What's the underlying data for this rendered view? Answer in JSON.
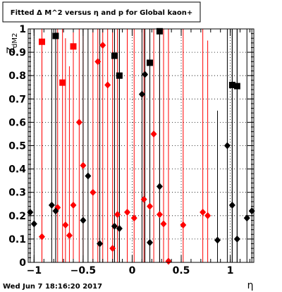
{
  "chart_data": {
    "type": "scatter",
    "title": "Fitted Δ M^2 versus η and p for Global kaon+",
    "xlabel": "η",
    "ylabel": "Z",
    "ylabel_sub": "dM2",
    "footer": "Wed Jun  7 18:16:20 2017",
    "xlim": [
      -1.06,
      1.24
    ],
    "ylim": [
      0,
      1
    ],
    "x_ticks": [
      -1,
      -0.5,
      0,
      0.5,
      1
    ],
    "x_tick_labels": [
      "−1",
      "−0.5",
      "0",
      "0.5",
      "1"
    ],
    "y_ticks": [
      0,
      0.1,
      0.2,
      0.3,
      0.4,
      0.5,
      0.6,
      0.7,
      0.8,
      0.9,
      1
    ],
    "y_tick_labels": [
      "0",
      "0.1",
      "0.2",
      "0.3",
      "0.4",
      "0.5",
      "0.6",
      "0.7",
      "0.8",
      "0.9",
      "1"
    ],
    "grid": true,
    "series": [
      {
        "color": "#ff0000",
        "marker": "diamond",
        "points": [
          {
            "x": -0.92,
            "y": 0.11,
            "ylo": 0,
            "yhi": 1
          },
          {
            "x": -0.76,
            "y": 0.235,
            "ylo": 0,
            "yhi": 1
          },
          {
            "x": -0.68,
            "y": 0.16,
            "ylo": 0,
            "yhi": 0.96
          },
          {
            "x": -0.64,
            "y": 0.115,
            "ylo": 0,
            "yhi": 0.84
          },
          {
            "x": -0.6,
            "y": 0.245,
            "ylo": 0,
            "yhi": 1
          },
          {
            "x": -0.54,
            "y": 0.6,
            "ylo": 0,
            "yhi": 1
          },
          {
            "x": -0.5,
            "y": 0.415,
            "ylo": 0,
            "yhi": 1
          },
          {
            "x": -0.4,
            "y": 0.3,
            "ylo": 0,
            "yhi": 1
          },
          {
            "x": -0.35,
            "y": 0.86,
            "ylo": 0,
            "yhi": 1
          },
          {
            "x": -0.3,
            "y": 0.93,
            "ylo": 0,
            "yhi": 1
          },
          {
            "x": -0.25,
            "y": 0.76,
            "ylo": 0,
            "yhi": 1
          },
          {
            "x": -0.2,
            "y": 0.06,
            "ylo": 0,
            "yhi": 1
          },
          {
            "x": -0.15,
            "y": 0.205,
            "ylo": 0,
            "yhi": 1
          },
          {
            "x": -0.05,
            "y": 0.215,
            "ylo": 0,
            "yhi": 1
          },
          {
            "x": 0.02,
            "y": 0.19,
            "ylo": 0,
            "yhi": 1
          },
          {
            "x": 0.12,
            "y": 0.27,
            "ylo": 0,
            "yhi": 1
          },
          {
            "x": 0.18,
            "y": 0.24,
            "ylo": 0,
            "yhi": 1
          },
          {
            "x": 0.22,
            "y": 0.55,
            "ylo": 0,
            "yhi": 1
          },
          {
            "x": 0.28,
            "y": 0.205,
            "ylo": 0,
            "yhi": 1
          },
          {
            "x": 0.32,
            "y": 0.165,
            "ylo": 0,
            "yhi": 1
          },
          {
            "x": 0.37,
            "y": 0.005,
            "ylo": 0,
            "yhi": 1
          },
          {
            "x": 0.52,
            "y": 0.16,
            "ylo": 0,
            "yhi": 1
          },
          {
            "x": 0.72,
            "y": 0.215,
            "ylo": 0,
            "yhi": 1
          },
          {
            "x": 0.77,
            "y": 0.2,
            "ylo": 0,
            "yhi": 0.95
          }
        ]
      },
      {
        "color": "#ff0000",
        "marker": "square",
        "points": [
          {
            "x": -0.92,
            "y": 0.945,
            "ylo": 0,
            "yhi": 1
          },
          {
            "x": -0.71,
            "y": 0.77,
            "ylo": 0,
            "yhi": 1
          },
          {
            "x": -0.6,
            "y": 0.925,
            "ylo": 0,
            "yhi": 1
          }
        ]
      },
      {
        "color": "#000000",
        "marker": "diamond",
        "points": [
          {
            "x": -1.04,
            "y": 0.215,
            "ylo": 0,
            "yhi": 1
          },
          {
            "x": -1.0,
            "y": 0.165,
            "ylo": 0,
            "yhi": 1
          },
          {
            "x": -0.82,
            "y": 0.245,
            "ylo": 0,
            "yhi": 1
          },
          {
            "x": -0.78,
            "y": 0.22,
            "ylo": 0,
            "yhi": 1
          },
          {
            "x": -0.5,
            "y": 0.18,
            "ylo": 0,
            "yhi": 1
          },
          {
            "x": -0.45,
            "y": 0.37,
            "ylo": 0,
            "yhi": 1
          },
          {
            "x": -0.33,
            "y": 0.08,
            "ylo": 0,
            "yhi": 1
          },
          {
            "x": -0.18,
            "y": 0.155,
            "ylo": 0,
            "yhi": 1
          },
          {
            "x": -0.13,
            "y": 0.145,
            "ylo": 0,
            "yhi": 1
          },
          {
            "x": 0.1,
            "y": 0.72,
            "ylo": 0,
            "yhi": 1
          },
          {
            "x": 0.13,
            "y": 0.805,
            "ylo": 0,
            "yhi": 1
          },
          {
            "x": 0.18,
            "y": 0.085,
            "ylo": 0,
            "yhi": 1
          },
          {
            "x": 0.28,
            "y": 0.325,
            "ylo": 0,
            "yhi": 1
          },
          {
            "x": 0.87,
            "y": 0.095,
            "ylo": 0,
            "yhi": 0.65
          },
          {
            "x": 0.97,
            "y": 0.5,
            "ylo": 0,
            "yhi": 1
          },
          {
            "x": 1.02,
            "y": 0.245,
            "ylo": 0,
            "yhi": 1
          },
          {
            "x": 1.07,
            "y": 0.1,
            "ylo": 0,
            "yhi": 1
          },
          {
            "x": 1.17,
            "y": 0.19,
            "ylo": 0,
            "yhi": 1
          },
          {
            "x": 1.22,
            "y": 0.22,
            "ylo": 0,
            "yhi": 1
          }
        ]
      },
      {
        "color": "#000000",
        "marker": "square",
        "points": [
          {
            "x": -0.78,
            "y": 0.97,
            "ylo": 0,
            "yhi": 1
          },
          {
            "x": -0.18,
            "y": 0.885,
            "ylo": 0,
            "yhi": 1
          },
          {
            "x": -0.13,
            "y": 0.8,
            "ylo": 0,
            "yhi": 1
          },
          {
            "x": 0.18,
            "y": 0.855,
            "ylo": 0,
            "yhi": 1
          },
          {
            "x": 0.28,
            "y": 0.99,
            "ylo": 0,
            "yhi": 1
          },
          {
            "x": 1.02,
            "y": 0.76,
            "ylo": 0,
            "yhi": 1
          },
          {
            "x": 1.07,
            "y": 0.755,
            "ylo": 0,
            "yhi": 1
          }
        ]
      }
    ]
  }
}
